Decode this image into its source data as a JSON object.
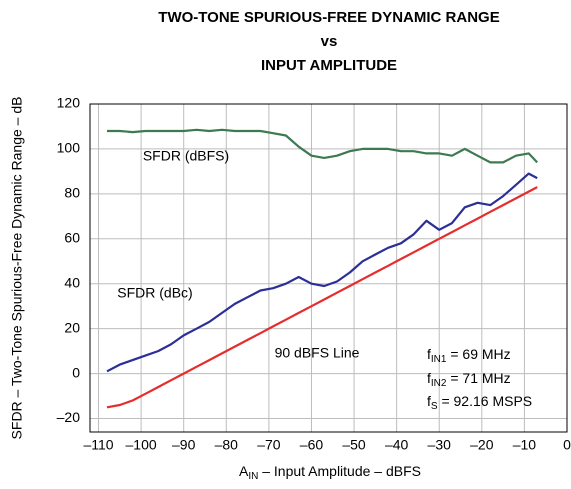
{
  "chart_data": {
    "type": "line",
    "title": [
      "TWO-TONE SPURIOUS-FREE DYNAMIC RANGE",
      "vs",
      "INPUT AMPLITUDE"
    ],
    "x_label": {
      "main": "A",
      "sub": "IN",
      "rest": " – Input Amplitude – dBFS"
    },
    "y_label": "SFDR – Two-Tone Spurious-Free Dynamic Range – dB",
    "xlim": [
      -112,
      0
    ],
    "xticks": [
      {
        "value": -110,
        "label": "–110"
      },
      {
        "value": -100,
        "label": "–100"
      },
      {
        "value": -90,
        "label": "–90"
      },
      {
        "value": -80,
        "label": "–80"
      },
      {
        "value": -70,
        "label": "–70"
      },
      {
        "value": -60,
        "label": "–60"
      },
      {
        "value": -50,
        "label": "–50"
      },
      {
        "value": -40,
        "label": "–40"
      },
      {
        "value": -30,
        "label": "–30"
      },
      {
        "value": -20,
        "label": "–20"
      },
      {
        "value": -10,
        "label": "–10"
      },
      0
    ],
    "ylim": [
      -26,
      120
    ],
    "yticks": [
      {
        "value": -20,
        "label": "–20"
      },
      0,
      20,
      40,
      60,
      80,
      100,
      120
    ],
    "grid": true,
    "x": [
      -108,
      -105,
      -102,
      -99,
      -96,
      -93,
      -90,
      -87,
      -84,
      -81,
      -78,
      -75,
      -72,
      -69,
      -66,
      -63,
      -60,
      -57,
      -54,
      -51,
      -48,
      -45,
      -42,
      -39,
      -36,
      -33,
      -30,
      -27,
      -24,
      -21,
      -18,
      -15,
      -12,
      -9,
      -7
    ],
    "series": [
      {
        "color": "#3d7a50",
        "values": [
          108,
          108,
          107.5,
          108,
          108,
          108,
          108,
          108.5,
          108,
          108.5,
          108,
          108,
          108,
          107,
          106,
          101,
          97,
          96,
          97,
          99,
          100,
          100,
          100,
          99,
          99,
          98,
          98,
          97,
          100,
          97,
          94,
          94,
          97,
          98,
          94
        ]
      },
      {
        "color": "#2b2f96",
        "values": [
          1,
          4,
          6,
          8,
          10,
          13,
          17,
          20,
          23,
          27,
          31,
          34,
          37,
          38,
          40,
          43,
          40,
          39,
          41,
          45,
          50,
          53,
          56,
          58,
          62,
          68,
          64,
          67,
          74,
          76,
          75,
          79,
          84,
          89,
          87
        ]
      },
      {
        "color": "#e52d2d",
        "values": [
          -15,
          -14,
          -12,
          -9,
          -6,
          -3,
          0,
          3,
          6,
          9,
          12,
          15,
          18,
          21,
          24,
          27,
          30,
          33,
          36,
          39,
          42,
          45,
          48,
          51,
          54,
          57,
          60,
          63,
          66,
          69,
          72,
          75,
          78,
          81,
          83
        ]
      }
    ],
    "annotations": [
      {
        "text": "SFDR (dBFS)"
      },
      {
        "text": "SFDR (dBc)"
      },
      {
        "text": "90 dBFS Line"
      },
      {
        "main": "f",
        "sub": "IN1",
        "rest": " = 69 MHz"
      },
      {
        "main": "f",
        "sub": "IN2",
        "rest": " = 71 MHz"
      },
      {
        "main": "f",
        "sub": "S",
        "rest": " = 92.16 MSPS"
      }
    ]
  }
}
